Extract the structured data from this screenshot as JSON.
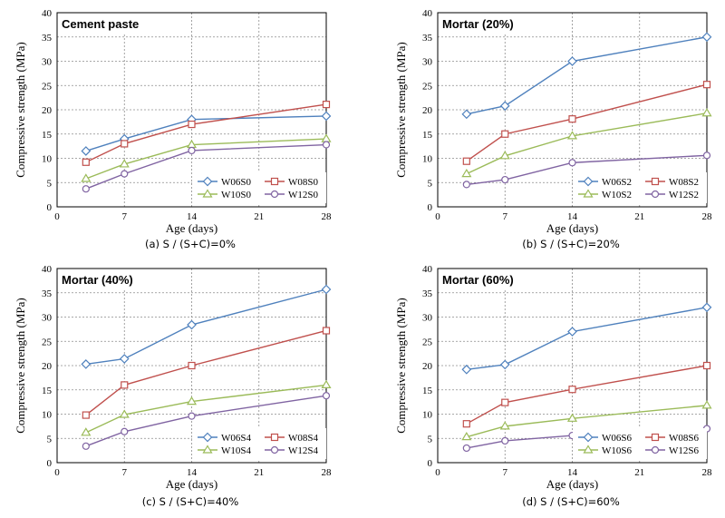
{
  "chart_data": [
    {
      "type": "line",
      "title": "Cement paste",
      "caption": "(a) S / (S+C)=0%",
      "xlabel": "Age (days)",
      "ylabel": "Compressive strength (MPa)",
      "xlim": [
        0,
        28
      ],
      "ylim": [
        0,
        40
      ],
      "xticks": [
        0,
        7,
        14,
        21,
        28
      ],
      "yticks": [
        0,
        5,
        10,
        15,
        20,
        25,
        30,
        35,
        40
      ],
      "grid": true,
      "legend_position": "bottom-right",
      "x": [
        3,
        7,
        14,
        28
      ],
      "series": [
        {
          "name": "W06S0",
          "values": [
            11.5,
            14,
            18,
            18.7
          ]
        },
        {
          "name": "W08S0",
          "values": [
            9.2,
            13,
            17,
            21.1
          ]
        },
        {
          "name": "W10S0",
          "values": [
            5.8,
            8.8,
            12.8,
            14
          ]
        },
        {
          "name": "W12S0",
          "values": [
            3.7,
            6.8,
            11.6,
            12.8
          ]
        }
      ]
    },
    {
      "type": "line",
      "title": "Mortar  (20%)",
      "caption": "(b) S / (S+C)=20%",
      "xlabel": "Age (days)",
      "ylabel": "Compressive strength (MPa)",
      "xlim": [
        0,
        28
      ],
      "ylim": [
        0,
        40
      ],
      "xticks": [
        0,
        7,
        14,
        21,
        28
      ],
      "yticks": [
        0,
        5,
        10,
        15,
        20,
        25,
        30,
        35,
        40
      ],
      "grid": true,
      "legend_position": "bottom-right",
      "x": [
        3,
        7,
        14,
        28
      ],
      "series": [
        {
          "name": "W06S2",
          "values": [
            19.1,
            20.8,
            30,
            35
          ]
        },
        {
          "name": "W08S2",
          "values": [
            9.4,
            15,
            18.1,
            25.2
          ]
        },
        {
          "name": "W10S2",
          "values": [
            6.8,
            10.5,
            14.6,
            19.3
          ]
        },
        {
          "name": "W12S2",
          "values": [
            4.6,
            5.6,
            9.1,
            10.6
          ]
        }
      ]
    },
    {
      "type": "line",
      "title": "Mortar  (40%)",
      "caption": "(c) S / (S+C)=40%",
      "xlabel": "Age (days)",
      "ylabel": "Compressive strength (MPa)",
      "xlim": [
        0,
        28
      ],
      "ylim": [
        0,
        40
      ],
      "xticks": [
        0,
        7,
        14,
        21,
        28
      ],
      "yticks": [
        0,
        5,
        10,
        15,
        20,
        25,
        30,
        35,
        40
      ],
      "grid": true,
      "legend_position": "bottom-right",
      "x": [
        3,
        7,
        14,
        28
      ],
      "series": [
        {
          "name": "W06S4",
          "values": [
            20.3,
            21.4,
            28.4,
            35.7
          ]
        },
        {
          "name": "W08S4",
          "values": [
            9.8,
            16,
            20,
            27.2
          ]
        },
        {
          "name": "W10S4",
          "values": [
            6.2,
            9.9,
            12.6,
            16
          ]
        },
        {
          "name": "W12S4",
          "values": [
            3.4,
            6.4,
            9.6,
            13.8
          ]
        }
      ]
    },
    {
      "type": "line",
      "title": "Mortar  (60%)",
      "caption": "(d) S / (S+C)=60%",
      "xlabel": "Age (days)",
      "ylabel": "Compressive strength (MPa)",
      "xlim": [
        0,
        28
      ],
      "ylim": [
        0,
        40
      ],
      "xticks": [
        0,
        7,
        14,
        21,
        28
      ],
      "yticks": [
        0,
        5,
        10,
        15,
        20,
        25,
        30,
        35,
        40
      ],
      "grid": true,
      "legend_position": "bottom-right",
      "x": [
        3,
        7,
        14,
        28
      ],
      "series": [
        {
          "name": "W06S6",
          "values": [
            19.2,
            20.2,
            27,
            32
          ]
        },
        {
          "name": "W08S6",
          "values": [
            8,
            12.4,
            15.1,
            20
          ]
        },
        {
          "name": "W10S6",
          "values": [
            5.3,
            7.5,
            9.1,
            11.8
          ]
        },
        {
          "name": "W12S6",
          "values": [
            3,
            4.5,
            5.6,
            7
          ]
        }
      ]
    }
  ],
  "series_styles": [
    {
      "color": "#4f81bd",
      "marker": "diamond"
    },
    {
      "color": "#c0504d",
      "marker": "square"
    },
    {
      "color": "#9bbb59",
      "marker": "triangle"
    },
    {
      "color": "#8064a2",
      "marker": "circle"
    }
  ]
}
